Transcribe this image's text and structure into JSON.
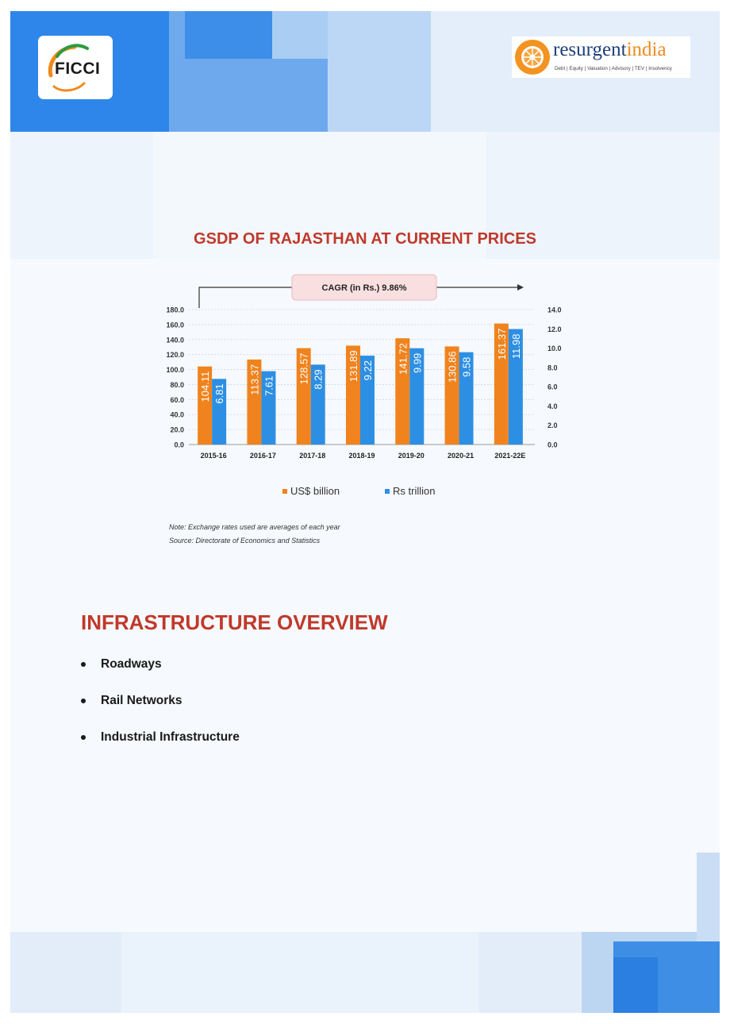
{
  "header": {
    "ficci_logo": "FICCI",
    "resurgent_logo": {
      "word_a": "resurgent",
      "word_b": "india",
      "tagline": "Debt | Equity | Valuation | Advisory | TEV | Insolvency"
    }
  },
  "chart_title": "GSDP OF RAJASTHAN AT CURRENT PRICES",
  "chart_data": {
    "type": "bar",
    "categories": [
      "2015-16",
      "2016-17",
      "2017-18",
      "2018-19",
      "2019-20",
      "2020-21",
      "2021-22E"
    ],
    "series": [
      {
        "name": "US$ billion",
        "axis": "left",
        "color": "#f0831e",
        "values": [
          104.11,
          113.37,
          128.57,
          131.89,
          141.72,
          130.86,
          161.37
        ]
      },
      {
        "name": "Rs trillion",
        "axis": "right",
        "color": "#2d8fe3",
        "values": [
          6.81,
          7.61,
          8.29,
          9.22,
          9.99,
          9.58,
          11.98
        ]
      }
    ],
    "yleft_ticks": [
      "0.0",
      "20.0",
      "40.0",
      "60.0",
      "80.0",
      "100.0",
      "120.0",
      "140.0",
      "160.0",
      "180.0"
    ],
    "yright_ticks": [
      "0.0",
      "2.0",
      "4.0",
      "6.0",
      "8.0",
      "10.0",
      "12.0",
      "14.0"
    ],
    "yleft_range": [
      0,
      180
    ],
    "yright_range": [
      0,
      14
    ],
    "annotation": "CAGR  (in Rs.) 9.86%",
    "legend_position": "bottom"
  },
  "notes": [
    "Note: Exchange rates used are averages of each year",
    "Source: Directorate of Economics and Statistics"
  ],
  "section_heading": "INFRASTRUCTURE OVERVIEW",
  "bullets": [
    "Roadways",
    "Rail Networks",
    "Industrial Infrastructure"
  ]
}
